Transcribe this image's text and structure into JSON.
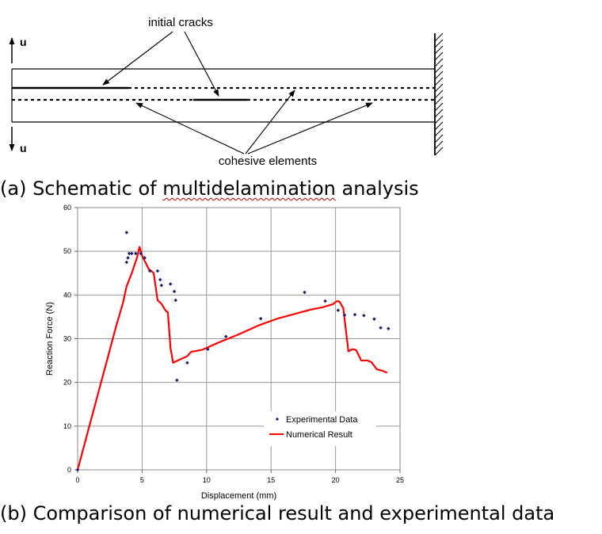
{
  "schematic": {
    "label_top": "initial cracks",
    "label_bottom": "cohesive elements",
    "u_top": "u",
    "u_bottom": "u"
  },
  "captions": {
    "a_prefix": "(a) Schematic of ",
    "a_word": "multidelamination",
    "a_suffix": " analysis",
    "b": "(b) Comparison of numerical result and experimental data"
  },
  "chart_data": {
    "type": "scatter",
    "xlabel": "Displacement (mm)",
    "ylabel": "Reaction Force (N)",
    "xlim": [
      0,
      25
    ],
    "ylim": [
      0,
      60
    ],
    "xticks": [
      0,
      5,
      10,
      15,
      20,
      25
    ],
    "yticks": [
      0,
      10,
      20,
      30,
      40,
      50,
      60
    ],
    "grid": true,
    "legend_position": "bottom-right",
    "series": [
      {
        "name": "Experimental Data",
        "kind": "scatter",
        "color": "#1f1f6e",
        "points": [
          [
            0,
            0
          ],
          [
            3.8,
            54.3
          ],
          [
            3.8,
            47.5
          ],
          [
            3.9,
            48.5
          ],
          [
            4.0,
            49.5
          ],
          [
            4.2,
            49.5
          ],
          [
            4.5,
            49.5
          ],
          [
            4.9,
            49.5
          ],
          [
            5.2,
            48.5
          ],
          [
            5.6,
            45.5
          ],
          [
            6.2,
            45.5
          ],
          [
            6.4,
            43.5
          ],
          [
            6.5,
            42.2
          ],
          [
            7.2,
            42.5
          ],
          [
            7.5,
            40.8
          ],
          [
            7.6,
            38.8
          ],
          [
            7.7,
            20.5
          ],
          [
            8.5,
            24.5
          ],
          [
            10.1,
            27.6
          ],
          [
            11.5,
            30.5
          ],
          [
            14.2,
            34.6
          ],
          [
            17.6,
            40.6
          ],
          [
            19.2,
            38.6
          ],
          [
            20.2,
            36.5
          ],
          [
            20.7,
            35.4
          ],
          [
            21.5,
            35.5
          ],
          [
            22.2,
            35.3
          ],
          [
            23.0,
            34.5
          ],
          [
            23.5,
            32.5
          ],
          [
            24.1,
            32.3
          ]
        ]
      },
      {
        "name": "Numerical Result",
        "kind": "line",
        "color": "#ff0000",
        "points": [
          [
            0,
            0
          ],
          [
            0.5,
            5.5
          ],
          [
            1.0,
            11
          ],
          [
            1.5,
            16.5
          ],
          [
            2.0,
            22
          ],
          [
            2.5,
            27.5
          ],
          [
            3.0,
            33
          ],
          [
            3.5,
            38
          ],
          [
            3.8,
            42
          ],
          [
            4.2,
            45
          ],
          [
            4.6,
            48.5
          ],
          [
            4.8,
            51
          ],
          [
            5.0,
            49
          ],
          [
            5.5,
            46
          ],
          [
            5.9,
            45
          ],
          [
            6.2,
            38.8
          ],
          [
            6.5,
            38
          ],
          [
            6.8,
            36.5
          ],
          [
            7.0,
            36
          ],
          [
            7.2,
            28
          ],
          [
            7.4,
            24.5
          ],
          [
            7.9,
            25.2
          ],
          [
            8.5,
            26
          ],
          [
            8.8,
            27
          ],
          [
            9.2,
            27.2
          ],
          [
            9.7,
            27.5
          ],
          [
            11,
            29.2
          ],
          [
            12.5,
            31
          ],
          [
            14,
            33
          ],
          [
            15.5,
            34.6
          ],
          [
            17,
            35.8
          ],
          [
            18,
            36.6
          ],
          [
            19,
            37.2
          ],
          [
            19.8,
            37.9
          ],
          [
            20.1,
            38.6
          ],
          [
            20.3,
            38.5
          ],
          [
            20.6,
            37
          ],
          [
            21.0,
            27.1
          ],
          [
            21.3,
            27.6
          ],
          [
            21.6,
            27.4
          ],
          [
            22.0,
            25
          ],
          [
            22.5,
            25
          ],
          [
            22.8,
            24.6
          ],
          [
            23.2,
            23
          ],
          [
            23.6,
            22.7
          ],
          [
            24.0,
            22.2
          ]
        ]
      }
    ]
  }
}
